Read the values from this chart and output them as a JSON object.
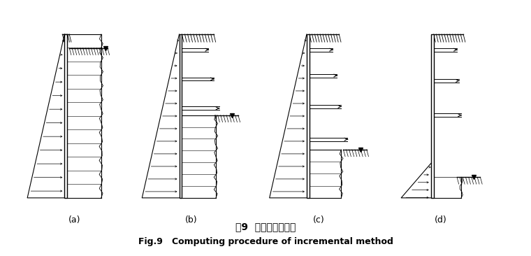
{
  "title_cn": "图9  增量法计算过程",
  "title_en": "Fig.9   Computing procedure of incremental method",
  "subfig_labels": [
    "(a)",
    "(b)",
    "(c)",
    "(d)"
  ],
  "bg_color": "#ffffff",
  "figsize": [
    7.6,
    3.66
  ],
  "dpi": 100
}
